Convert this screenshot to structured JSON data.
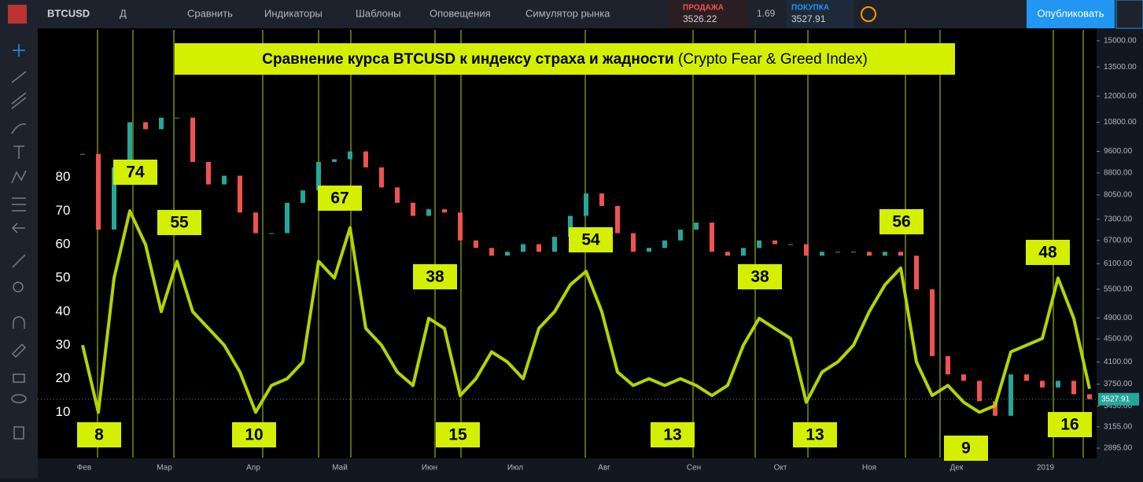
{
  "toolbar": {
    "symbol": "BTCUSD",
    "interval": "Д",
    "items": [
      "Сравнить",
      "Индикаторы",
      "Шаблоны",
      "Оповещения",
      "Симулятор рынка"
    ],
    "sell_label": "ПРОДАЖА",
    "sell_price": "3526.22",
    "spread": "1.69",
    "buy_label": "ПОКУПКА",
    "buy_price": "3527.91",
    "publish": "Опубликовать"
  },
  "chart": {
    "type": "line",
    "title_bold": "Сравнение курса BTCUSD к индексу страха и жадности",
    "title_rest": " (Crypto Fear & Greed Index)",
    "fgi_ylim": [
      0,
      120
    ],
    "fgi_yticks": [
      10,
      20,
      30,
      40,
      50,
      60,
      70,
      80
    ],
    "fgi_color": "#b5d400",
    "fgi_values": [
      30,
      10,
      50,
      70,
      60,
      40,
      55,
      40,
      35,
      30,
      22,
      10,
      18,
      20,
      25,
      55,
      50,
      65,
      35,
      30,
      22,
      18,
      38,
      35,
      15,
      20,
      28,
      25,
      20,
      35,
      40,
      48,
      52,
      40,
      22,
      18,
      20,
      18,
      20,
      18,
      15,
      18,
      30,
      38,
      35,
      32,
      13,
      22,
      25,
      30,
      40,
      48,
      53,
      25,
      15,
      18,
      13,
      10,
      12,
      28,
      30,
      32,
      50,
      38,
      17
    ],
    "price_values": [
      9500,
      7000,
      9000,
      10800,
      10500,
      11000,
      11000,
      9200,
      8400,
      8700,
      7500,
      6900,
      6900,
      7800,
      8200,
      9200,
      9300,
      9600,
      9000,
      8300,
      7800,
      7400,
      7600,
      7500,
      6700,
      6500,
      6300,
      6400,
      6600,
      6400,
      6800,
      7400,
      8100,
      7700,
      6900,
      6400,
      6500,
      6700,
      7000,
      7200,
      6400,
      6300,
      6500,
      6700,
      6600,
      6600,
      6300,
      6400,
      6400,
      6400,
      6300,
      6400,
      6300,
      5500,
      4200,
      3900,
      3800,
      3500,
      3300,
      3900,
      3800,
      3700,
      3800,
      3600,
      3527.91
    ],
    "price_ylim": [
      2895,
      15000
    ],
    "price_log": true,
    "price_ticks": [
      {
        "value": 15000,
        "label": "15000.00"
      },
      {
        "value": 13500,
        "label": "13500.00"
      },
      {
        "value": 12000,
        "label": "12000.00"
      },
      {
        "value": 10800,
        "label": "10800.00"
      },
      {
        "value": 9600,
        "label": "9600.00"
      },
      {
        "value": 8800,
        "label": "8800.00"
      },
      {
        "value": 8050,
        "label": "8050.00"
      },
      {
        "value": 7300,
        "label": "7300.00"
      },
      {
        "value": 6700,
        "label": "6700.00"
      },
      {
        "value": 6100,
        "label": "6100.00"
      },
      {
        "value": 5500,
        "label": "5500.00"
      },
      {
        "value": 4900,
        "label": "4900.00"
      },
      {
        "value": 4500,
        "label": "4500.00"
      },
      {
        "value": 4100,
        "label": "4100.00"
      },
      {
        "value": 3750,
        "label": "3750.00"
      },
      {
        "value": 3430,
        "label": "3430.00"
      },
      {
        "value": 3155,
        "label": "3155.00"
      },
      {
        "value": 2895,
        "label": "2895.00"
      }
    ],
    "last_price": {
      "value": 3527.91,
      "label": "3527.91"
    },
    "x_labels": [
      "Фев",
      "Мар",
      "Апр",
      "Май",
      "Июн",
      "Июл",
      "Авг",
      "Сен",
      "Окт",
      "Ноя",
      "Дек",
      "2019"
    ],
    "annotations": [
      74,
      55,
      67,
      38,
      54,
      56,
      38,
      48,
      8,
      10,
      15,
      13,
      13,
      9,
      16
    ]
  }
}
